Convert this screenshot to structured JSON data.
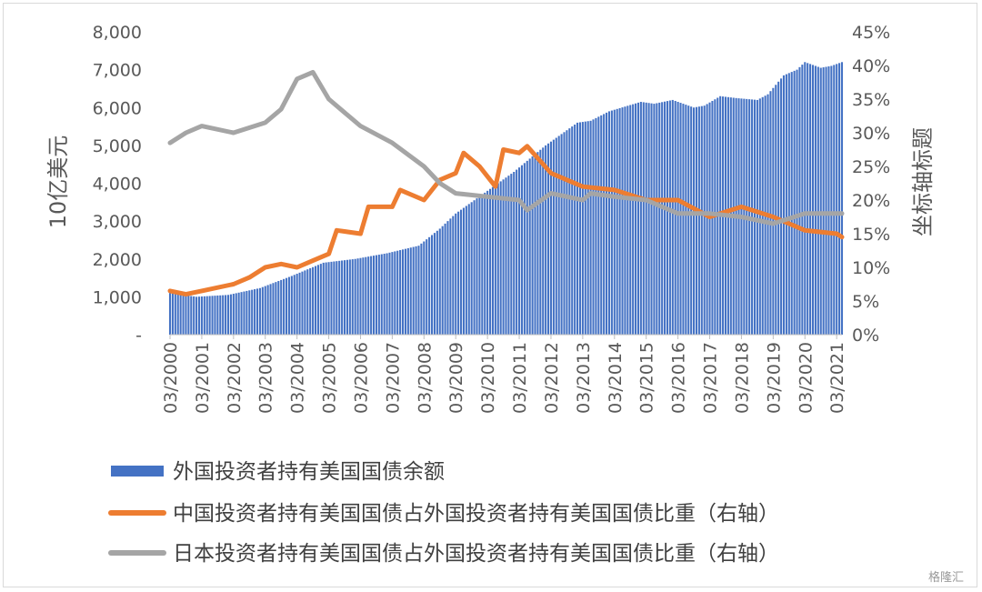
{
  "watermark": "格隆汇",
  "chart_data": {
    "type": "bar+line",
    "y_left_label": "10亿美元",
    "y_right_label": "坐标轴标题",
    "y_left_ticks": [
      "-",
      "1,000",
      "2,000",
      "3,000",
      "4,000",
      "5,000",
      "6,000",
      "7,000",
      "8,000"
    ],
    "y_right_ticks": [
      "0%",
      "5%",
      "10%",
      "15%",
      "20%",
      "25%",
      "30%",
      "35%",
      "40%",
      "45%"
    ],
    "ylim_left": [
      0,
      8000
    ],
    "ylim_right": [
      0,
      45
    ],
    "x_tick_labels": [
      "03/2000",
      "03/2001",
      "03/2002",
      "03/2003",
      "03/2004",
      "03/2005",
      "03/2006",
      "03/2007",
      "03/2008",
      "03/2009",
      "03/2010",
      "03/2011",
      "03/2012",
      "03/2013",
      "03/2014",
      "03/2015",
      "03/2016",
      "03/2017",
      "03/2018",
      "03/2019",
      "03/2020",
      "03/2021"
    ],
    "x_range": [
      "03/2000",
      "05/2021"
    ],
    "legend_position": "bottom",
    "series": [
      {
        "name": "外国投资者持有美国国债余额",
        "kind": "bar",
        "axis": "left",
        "color": "#4472C4",
        "points": [
          [
            "03/2000",
            1100
          ],
          [
            "01/2001",
            1000
          ],
          [
            "01/2002",
            1050
          ],
          [
            "01/2003",
            1230
          ],
          [
            "01/2004",
            1550
          ],
          [
            "01/2005",
            1900
          ],
          [
            "01/2006",
            2000
          ],
          [
            "01/2007",
            2150
          ],
          [
            "01/2008",
            2350
          ],
          [
            "09/2008",
            2800
          ],
          [
            "03/2009",
            3200
          ],
          [
            "01/2010",
            3700
          ],
          [
            "01/2011",
            4300
          ],
          [
            "01/2012",
            5000
          ],
          [
            "01/2013",
            5600
          ],
          [
            "06/2013",
            5650
          ],
          [
            "01/2014",
            5900
          ],
          [
            "01/2015",
            6150
          ],
          [
            "06/2015",
            6100
          ],
          [
            "01/2016",
            6200
          ],
          [
            "09/2016",
            6000
          ],
          [
            "01/2017",
            6050
          ],
          [
            "07/2017",
            6300
          ],
          [
            "01/2018",
            6250
          ],
          [
            "09/2018",
            6200
          ],
          [
            "01/2019",
            6350
          ],
          [
            "07/2019",
            6850
          ],
          [
            "12/2019",
            7000
          ],
          [
            "03/2020",
            7200
          ],
          [
            "09/2020",
            7050
          ],
          [
            "01/2021",
            7100
          ],
          [
            "05/2021",
            7200
          ]
        ]
      },
      {
        "name": "中国投资者持有美国国债占外国投资者持有美国国债比重（右轴）",
        "kind": "line",
        "axis": "right",
        "color": "#ED7D31",
        "points": [
          [
            "03/2000",
            6.5
          ],
          [
            "09/2000",
            6.0
          ],
          [
            "03/2001",
            6.5
          ],
          [
            "03/2002",
            7.5
          ],
          [
            "09/2002",
            8.5
          ],
          [
            "03/2003",
            10.0
          ],
          [
            "09/2003",
            10.5
          ],
          [
            "03/2004",
            10.0
          ],
          [
            "09/2004",
            11.0
          ],
          [
            "03/2005",
            12.0
          ],
          [
            "06/2005",
            15.5
          ],
          [
            "03/2006",
            15.0
          ],
          [
            "06/2006",
            19.0
          ],
          [
            "03/2007",
            19.0
          ],
          [
            "06/2007",
            21.5
          ],
          [
            "03/2008",
            20.0
          ],
          [
            "09/2008",
            23.0
          ],
          [
            "03/2009",
            24.0
          ],
          [
            "06/2009",
            27.0
          ],
          [
            "12/2009",
            25.0
          ],
          [
            "06/2010",
            22.0
          ],
          [
            "09/2010",
            27.5
          ],
          [
            "03/2011",
            27.0
          ],
          [
            "06/2011",
            28.0
          ],
          [
            "03/2012",
            24.0
          ],
          [
            "03/2013",
            22.0
          ],
          [
            "03/2014",
            21.5
          ],
          [
            "03/2015",
            20.0
          ],
          [
            "03/2016",
            20.0
          ],
          [
            "03/2017",
            17.5
          ],
          [
            "03/2018",
            19.0
          ],
          [
            "03/2019",
            17.5
          ],
          [
            "03/2020",
            15.5
          ],
          [
            "03/2021",
            15.0
          ],
          [
            "05/2021",
            14.5
          ]
        ]
      },
      {
        "name": "日本投资者持有美国国债占外国投资者持有美国国债比重（右轴）",
        "kind": "line",
        "axis": "right",
        "color": "#A5A5A5",
        "points": [
          [
            "03/2000",
            28.5
          ],
          [
            "09/2000",
            30.0
          ],
          [
            "03/2001",
            31.0
          ],
          [
            "03/2002",
            30.0
          ],
          [
            "03/2003",
            31.5
          ],
          [
            "09/2003",
            33.5
          ],
          [
            "03/2004",
            38.0
          ],
          [
            "09/2004",
            39.0
          ],
          [
            "03/2005",
            35.0
          ],
          [
            "09/2005",
            33.0
          ],
          [
            "03/2006",
            31.0
          ],
          [
            "03/2007",
            28.5
          ],
          [
            "03/2008",
            25.0
          ],
          [
            "09/2008",
            22.5
          ],
          [
            "03/2009",
            21.0
          ],
          [
            "03/2010",
            20.5
          ],
          [
            "03/2011",
            20.0
          ],
          [
            "06/2011",
            18.5
          ],
          [
            "03/2012",
            21.0
          ],
          [
            "03/2013",
            20.0
          ],
          [
            "06/2013",
            21.0
          ],
          [
            "03/2014",
            20.5
          ],
          [
            "03/2015",
            20.0
          ],
          [
            "03/2016",
            18.0
          ],
          [
            "03/2017",
            18.0
          ],
          [
            "03/2018",
            17.5
          ],
          [
            "03/2019",
            16.5
          ],
          [
            "03/2020",
            18.0
          ],
          [
            "05/2021",
            18.0
          ]
        ]
      }
    ]
  }
}
